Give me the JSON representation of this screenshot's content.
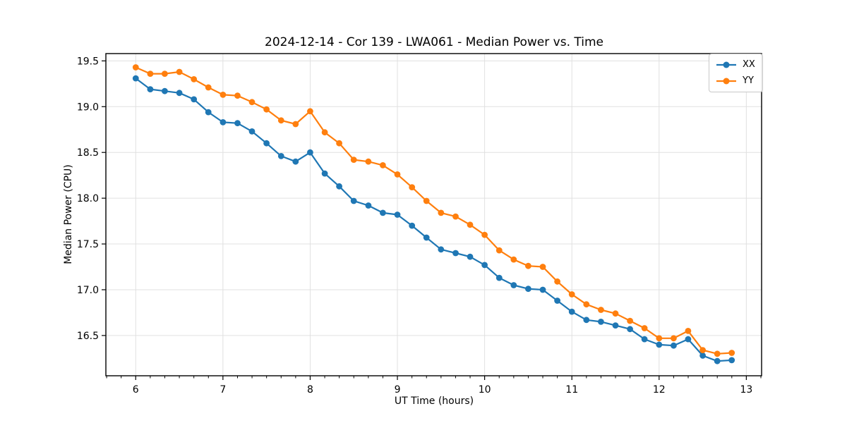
{
  "figure": {
    "title": "2024-12-14 - Cor 139 - LWA061 - Median Power vs. Time"
  },
  "chart_data": {
    "type": "line",
    "title": "2024-12-14 - Cor 139 - LWA061 - Median Power vs. Time",
    "xlabel": "UT Time (hours)",
    "ylabel": "Median Power (CPU)",
    "xlim": [
      5.658,
      13.175
    ],
    "ylim": [
      16.06,
      19.58
    ],
    "x_ticks": [
      6,
      7,
      8,
      9,
      10,
      11,
      12,
      13
    ],
    "x_minor_step": 0.16667,
    "y_ticks": [
      16.5,
      17.0,
      17.5,
      18.0,
      18.5,
      19.0,
      19.5
    ],
    "grid": true,
    "grid_color": "#e0e0e0",
    "legend_position": "upper right",
    "x": [
      6.0,
      6.167,
      6.333,
      6.5,
      6.667,
      6.833,
      7.0,
      7.167,
      7.333,
      7.5,
      7.667,
      7.833,
      8.0,
      8.167,
      8.333,
      8.5,
      8.667,
      8.833,
      9.0,
      9.167,
      9.333,
      9.5,
      9.667,
      9.833,
      10.0,
      10.167,
      10.333,
      10.5,
      10.667,
      10.833,
      11.0,
      11.167,
      11.333,
      11.5,
      11.667,
      11.833,
      12.0,
      12.167,
      12.333,
      12.5,
      12.667,
      12.833
    ],
    "series": [
      {
        "name": "XX",
        "color": "#1f77b4",
        "values": [
          19.31,
          19.19,
          19.17,
          19.15,
          19.08,
          18.94,
          18.83,
          18.82,
          18.73,
          18.6,
          18.46,
          18.4,
          18.5,
          18.27,
          18.13,
          17.97,
          17.92,
          17.84,
          17.82,
          17.7,
          17.57,
          17.44,
          17.4,
          17.36,
          17.27,
          17.13,
          17.05,
          17.01,
          17.0,
          16.88,
          16.76,
          16.67,
          16.65,
          16.61,
          16.57,
          16.46,
          16.4,
          16.39,
          16.46,
          16.28,
          16.22,
          16.23
        ]
      },
      {
        "name": "YY",
        "color": "#ff7f0e",
        "values": [
          19.43,
          19.36,
          19.36,
          19.38,
          19.3,
          19.21,
          19.13,
          19.12,
          19.05,
          18.97,
          18.85,
          18.81,
          18.95,
          18.72,
          18.6,
          18.42,
          18.4,
          18.36,
          18.26,
          18.12,
          17.97,
          17.84,
          17.8,
          17.71,
          17.6,
          17.43,
          17.33,
          17.26,
          17.25,
          17.09,
          16.95,
          16.84,
          16.78,
          16.74,
          16.66,
          16.58,
          16.47,
          16.47,
          16.55,
          16.34,
          16.3,
          16.31
        ]
      }
    ]
  }
}
